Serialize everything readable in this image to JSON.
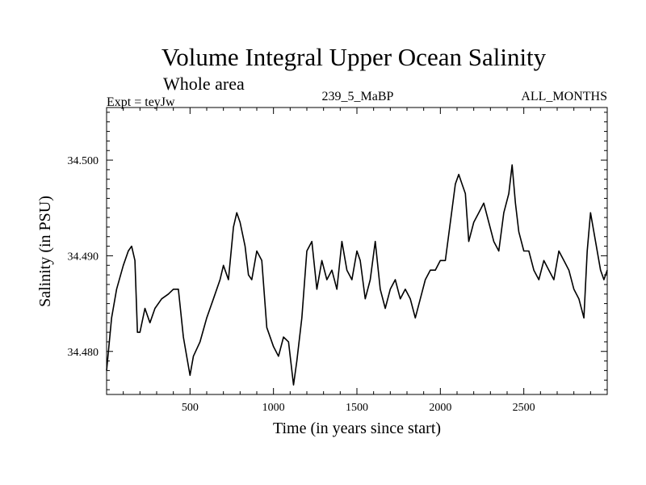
{
  "chart_data": {
    "type": "line",
    "title": "Volume Integral Upper Ocean Salinity",
    "subtitle": "Whole area",
    "experiment_label": "Expt = teyJw",
    "run_label": "239_5_MaBP",
    "months_label": "ALL_MONTHS",
    "xlabel": "Time (in years since start)",
    "ylabel": "Salinity (in PSU)",
    "xlim": [
      0,
      3000
    ],
    "ylim": [
      34.4755,
      34.5055
    ],
    "x_ticks": [
      500,
      1000,
      1500,
      2000,
      2500
    ],
    "x_tick_labels": [
      "500",
      "1000",
      "1500",
      "2000",
      "2500"
    ],
    "y_ticks": [
      34.48,
      34.49,
      34.5
    ],
    "y_tick_labels": [
      "34.480",
      "34.490",
      "34.500"
    ],
    "grid": false,
    "series": [
      {
        "name": "Salinity",
        "color": "#000000",
        "x": [
          0,
          30,
          60,
          100,
          130,
          150,
          170,
          185,
          200,
          230,
          260,
          290,
          330,
          370,
          400,
          430,
          460,
          480,
          500,
          520,
          560,
          600,
          640,
          680,
          700,
          730,
          760,
          780,
          800,
          830,
          850,
          870,
          900,
          930,
          960,
          1000,
          1030,
          1060,
          1090,
          1120,
          1140,
          1170,
          1200,
          1230,
          1260,
          1290,
          1320,
          1350,
          1380,
          1410,
          1440,
          1470,
          1500,
          1520,
          1550,
          1580,
          1610,
          1640,
          1670,
          1700,
          1730,
          1760,
          1790,
          1820,
          1850,
          1880,
          1910,
          1940,
          1970,
          2000,
          2030,
          2060,
          2090,
          2110,
          2130,
          2150,
          2170,
          2200,
          2230,
          2260,
          2290,
          2320,
          2350,
          2380,
          2410,
          2430,
          2450,
          2470,
          2500,
          2530,
          2560,
          2590,
          2620,
          2650,
          2680,
          2710,
          2740,
          2770,
          2800,
          2830,
          2860,
          2880,
          2900,
          2930,
          2960,
          2980,
          3000
        ],
        "values": [
          34.478,
          34.4835,
          34.4865,
          34.489,
          34.4905,
          34.491,
          34.4895,
          34.482,
          34.482,
          34.4845,
          34.483,
          34.4845,
          34.4855,
          34.486,
          34.4865,
          34.4865,
          34.4815,
          34.4795,
          34.4775,
          34.4795,
          34.481,
          34.4835,
          34.4855,
          34.4875,
          34.489,
          34.4875,
          34.493,
          34.4945,
          34.4935,
          34.491,
          34.488,
          34.4875,
          34.4905,
          34.4895,
          34.4825,
          34.4805,
          34.4795,
          34.4815,
          34.481,
          34.4765,
          34.479,
          34.4835,
          34.4905,
          34.4915,
          34.4865,
          34.4895,
          34.4875,
          34.4885,
          34.4865,
          34.4915,
          34.4885,
          34.4875,
          34.4905,
          34.4895,
          34.4855,
          34.4875,
          34.4915,
          34.4865,
          34.4845,
          34.4865,
          34.4875,
          34.4855,
          34.4865,
          34.4855,
          34.4835,
          34.4855,
          34.4875,
          34.4885,
          34.4885,
          34.4895,
          34.4895,
          34.4935,
          34.4975,
          34.4985,
          34.4975,
          34.4965,
          34.4915,
          34.4935,
          34.4945,
          34.4955,
          34.4935,
          34.4915,
          34.4905,
          34.4945,
          34.4965,
          34.4995,
          34.4955,
          34.4925,
          34.4905,
          34.4905,
          34.4885,
          34.4875,
          34.4895,
          34.4885,
          34.4875,
          34.4905,
          34.4895,
          34.4885,
          34.4865,
          34.4855,
          34.4835,
          34.4905,
          34.4945,
          34.4915,
          34.4885,
          34.4875,
          34.4885
        ]
      }
    ]
  }
}
